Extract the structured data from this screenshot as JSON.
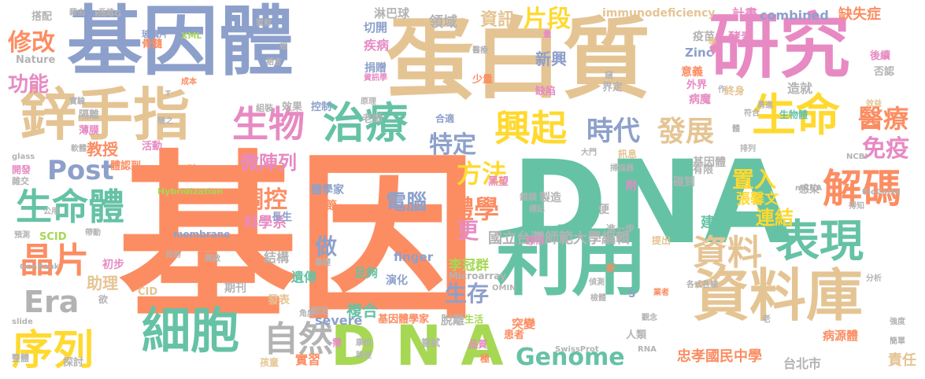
{
  "words": [
    {
      "text": "基因",
      "color": "#fc8d62",
      "weight": 1.0
    },
    {
      "text": "DNA",
      "color": "#66c2a5",
      "weight": 0.72
    },
    {
      "text": "蛋白質",
      "color": "#e5c494",
      "weight": 0.6
    },
    {
      "text": "基因體",
      "color": "#8da0cb",
      "weight": 0.58
    },
    {
      "text": "研究",
      "color": "#e78ac3",
      "weight": 0.52
    },
    {
      "text": "利用",
      "color": "#66c2a5",
      "weight": 0.46
    },
    {
      "text": "資料庫",
      "color": "#e5c494",
      "weight": 0.4
    },
    {
      "text": "鋅手指",
      "color": "#e5c494",
      "weight": 0.36
    },
    {
      "text": "D N A",
      "color": "#a6d854",
      "weight": 0.3
    },
    {
      "text": "生命",
      "color": "#ffd92f",
      "weight": 0.3
    },
    {
      "text": "治療",
      "color": "#66c2a5",
      "weight": 0.28
    },
    {
      "text": "細胞",
      "color": "#66c2a5",
      "weight": 0.28
    },
    {
      "text": "表現",
      "color": "#66c2a5",
      "weight": 0.28
    },
    {
      "text": "序列",
      "color": "#ffd92f",
      "weight": 0.26
    },
    {
      "text": "解碼",
      "color": "#fc8d62",
      "weight": 0.24
    },
    {
      "text": "生命體",
      "color": "#66c2a5",
      "weight": 0.24
    },
    {
      "text": "資料",
      "color": "#e5c494",
      "weight": 0.24
    },
    {
      "text": "興起",
      "color": "#ffd92f",
      "weight": 0.22
    },
    {
      "text": "生物",
      "color": "#e78ac3",
      "weight": 0.22
    },
    {
      "text": "Genome",
      "color": "#66c2a5",
      "weight": 0.2
    },
    {
      "text": "晶片",
      "color": "#fc8d62",
      "weight": 0.2
    },
    {
      "text": "自然",
      "color": "#b3b3b3",
      "weight": 0.2
    },
    {
      "text": "時代",
      "color": "#8da0cb",
      "weight": 0.18
    },
    {
      "text": "發展",
      "color": "#e5c494",
      "weight": 0.18
    },
    {
      "text": "醫療",
      "color": "#fc8d62",
      "weight": 0.16
    },
    {
      "text": "免疫",
      "color": "#e78ac3",
      "weight": 0.16
    },
    {
      "text": "Post",
      "color": "#8da0cb",
      "weight": 0.16
    },
    {
      "text": "Era",
      "color": "#b3b3b3",
      "weight": 0.16
    },
    {
      "text": "體學",
      "color": "#fc8d62",
      "weight": 0.15
    },
    {
      "text": "方法",
      "color": "#ffd92f",
      "weight": 0.15
    },
    {
      "text": "調控",
      "color": "#fc8d62",
      "weight": 0.14
    },
    {
      "text": "特定",
      "color": "#8da0cb",
      "weight": 0.14
    },
    {
      "text": "片段",
      "color": "#ffd92f",
      "weight": 0.14
    },
    {
      "text": "修改",
      "color": "#fc8d62",
      "weight": 0.13
    },
    {
      "text": "生存",
      "color": "#8da0cb",
      "weight": 0.13
    },
    {
      "text": "電腦",
      "color": "#8da0cb",
      "weight": 0.13
    },
    {
      "text": "置入",
      "color": "#ffd92f",
      "weight": 0.12
    },
    {
      "text": "微陣列",
      "color": "#e78ac3",
      "weight": 0.12
    },
    {
      "text": "功能",
      "color": "#e78ac3",
      "weight": 0.12
    },
    {
      "text": "做",
      "color": "#8da0cb",
      "weight": 0.12
    },
    {
      "text": "更",
      "color": "#e78ac3",
      "weight": 0.12
    },
    {
      "text": "連結",
      "color": "#ffd92f",
      "weight": 0.11
    },
    {
      "text": "資訊",
      "color": "#e5c494",
      "weight": 0.1
    },
    {
      "text": "科學系",
      "color": "#e78ac3",
      "weight": 0.1
    },
    {
      "text": "教授",
      "color": "#fc8d62",
      "weight": 0.1
    },
    {
      "text": "助理",
      "color": "#e5c494",
      "weight": 0.1
    },
    {
      "text": "張馨文",
      "color": "#ffd92f",
      "weight": 0.1
    },
    {
      "text": "建立",
      "color": "#66c2a5",
      "weight": 0.1
    },
    {
      "text": "新興",
      "color": "#8da0cb",
      "weight": 0.1
    },
    {
      "text": "複合",
      "color": "#66c2a5",
      "weight": 0.1
    },
    {
      "text": "國立台灣師範大學編輯",
      "color": "#b3b3b3",
      "weight": 0.09
    },
    {
      "text": "李冠群",
      "color": "#a6d854",
      "weight": 0.09
    },
    {
      "text": "忠孝國民中學",
      "color": "#fc8d62",
      "weight": 0.09
    },
    {
      "text": "台北市",
      "color": "#b3b3b3",
      "weight": 0.09
    },
    {
      "text": "combined",
      "color": "#8da0cb",
      "weight": 0.09
    },
    {
      "text": "severe",
      "color": "#8da0cb",
      "weight": 0.09
    },
    {
      "text": "缺失症",
      "color": "#fc8d62",
      "weight": 0.09
    },
    {
      "text": "領域",
      "color": "#b3b3b3",
      "weight": 0.09
    },
    {
      "text": "實習",
      "color": "#fc8d62",
      "weight": 0.09
    },
    {
      "text": "責任",
      "color": "#e5c494",
      "weight": 0.09
    },
    {
      "text": "遺傳",
      "color": "#66c2a5",
      "weight": 0.08
    },
    {
      "text": "結構",
      "color": "#b3b3b3",
      "weight": 0.08
    },
    {
      "text": "造就",
      "color": "#b3b3b3",
      "weight": 0.08
    },
    {
      "text": "疾病",
      "color": "#e78ac3",
      "weight": 0.08
    },
    {
      "text": "切開",
      "color": "#8da0cb",
      "weight": 0.08
    },
    {
      "text": "淋巴球",
      "color": "#b3b3b3",
      "weight": 0.08
    },
    {
      "text": "immunodeficiency",
      "color": "#e5c494",
      "weight": 0.07
    },
    {
      "text": "計畫",
      "color": "#e78ac3",
      "weight": 0.08
    },
    {
      "text": "finger",
      "color": "#8da0cb",
      "weight": 0.08
    },
    {
      "text": "Zinc",
      "color": "#8da0cb",
      "weight": 0.07
    },
    {
      "text": "病源體",
      "color": "#fc8d62",
      "weight": 0.07
    },
    {
      "text": "基因體學家",
      "color": "#fc8d62",
      "weight": 0.07
    },
    {
      "text": "體學家",
      "color": "#8da0cb",
      "weight": 0.07
    },
    {
      "text": "基因體",
      "color": "#b3b3b3",
      "weight": 0.06
    },
    {
      "text": "突變",
      "color": "#fc8d62",
      "weight": 0.07
    },
    {
      "text": "脫離",
      "color": "#b3b3b3",
      "weight": 0.07
    },
    {
      "text": "期刊",
      "color": "#b3b3b3",
      "weight": 0.07
    },
    {
      "text": "發表",
      "color": "#e5c494",
      "weight": 0.07
    },
    {
      "text": "初步",
      "color": "#e78ac3",
      "weight": 0.07
    },
    {
      "text": "足夠",
      "color": "#66c2a5",
      "weight": 0.07
    },
    {
      "text": "演化",
      "color": "#8da0cb",
      "weight": 0.06
    },
    {
      "text": "調節",
      "color": "#fc8d62",
      "weight": 0.06
    },
    {
      "text": "製造",
      "color": "#b3b3b3",
      "weight": 0.06
    },
    {
      "text": "碰到",
      "color": "#b3b3b3",
      "weight": 0.06
    },
    {
      "text": "感染",
      "color": "#b3b3b3",
      "weight": 0.06
    },
    {
      "text": "有限",
      "color": "#b3b3b3",
      "weight": 0.06
    },
    {
      "text": "病魔",
      "color": "#e78ac3",
      "weight": 0.06
    },
    {
      "text": "終身",
      "color": "#e5c494",
      "weight": 0.06
    },
    {
      "text": "意義",
      "color": "#fc8d62",
      "weight": 0.06
    },
    {
      "text": "外界",
      "color": "#e78ac3",
      "weight": 0.06
    },
    {
      "text": "疫苗",
      "color": "#b3b3b3",
      "weight": 0.06
    },
    {
      "text": "酵素",
      "color": "#e78ac3",
      "weight": 0.06
    },
    {
      "text": "後續",
      "color": "#e78ac3",
      "weight": 0.05
    },
    {
      "text": "否認",
      "color": "#b3b3b3",
      "weight": 0.05
    },
    {
      "text": "生物體",
      "color": "#66c2a5",
      "weight": 0.05
    },
    {
      "text": "缺陷",
      "color": "#e78ac3",
      "weight": 0.05
    },
    {
      "text": "界定",
      "color": "#b3b3b3",
      "weight": 0.05
    },
    {
      "text": "捐贈",
      "color": "#8da0cb",
      "weight": 0.05
    },
    {
      "text": "老師",
      "color": "#b3b3b3",
      "weight": 0.05
    },
    {
      "text": "少量",
      "color": "#fc8d62",
      "weight": 0.05
    },
    {
      "text": "搭配",
      "color": "#b3b3b3",
      "weight": 0.05
    },
    {
      "text": "骨髓",
      "color": "#fc8d62",
      "weight": 0.05
    },
    {
      "text": "隔離",
      "color": "#b3b3b3",
      "weight": 0.05
    },
    {
      "text": "薄膜",
      "color": "#e78ac3",
      "weight": 0.05
    },
    {
      "text": "活動",
      "color": "#e78ac3",
      "weight": 0.05
    },
    {
      "text": "正確",
      "color": "#fc8d62",
      "weight": 0.05
    },
    {
      "text": "體認到",
      "color": "#fc8d62",
      "weight": 0.05
    },
    {
      "text": "開發",
      "color": "#e78ac3",
      "weight": 0.05
    },
    {
      "text": "雜交",
      "color": "#b3b3b3",
      "weight": 0.04
    },
    {
      "text": "SCID",
      "color": "#a6d854",
      "weight": 0.05
    },
    {
      "text": "CID",
      "color": "#e5c494",
      "weight": 0.05
    },
    {
      "text": "Nature",
      "color": "#b3b3b3",
      "weight": 0.05
    },
    {
      "text": "KEGG",
      "color": "#b3b3b3",
      "weight": 0.04
    },
    {
      "text": "長生",
      "color": "#8da0cb",
      "weight": 0.05
    },
    {
      "text": "控制",
      "color": "#8da0cb",
      "weight": 0.05
    },
    {
      "text": "效果",
      "color": "#b3b3b3",
      "weight": 0.05
    },
    {
      "text": "組裝",
      "color": "#b3b3b3",
      "weight": 0.04
    },
    {
      "text": "合適",
      "color": "#8da0cb",
      "weight": 0.05
    },
    {
      "text": "黑望",
      "color": "#e78ac3",
      "weight": 0.05
    },
    {
      "text": "錯誤",
      "color": "#b3b3b3",
      "weight": 0.04
    },
    {
      "text": "附",
      "color": "#e78ac3",
      "weight": 0.05
    },
    {
      "text": "便",
      "color": "#b3b3b3",
      "weight": 0.05
    },
    {
      "text": "訊息",
      "color": "#e5c494",
      "weight": 0.04
    },
    {
      "text": "進一步",
      "color": "#b3b3b3",
      "weight": 0.04
    },
    {
      "text": "提出",
      "color": "#e5c494",
      "weight": 0.04
    },
    {
      "text": "想法",
      "color": "#e78ac3",
      "weight": 0.04
    },
    {
      "text": "患者",
      "color": "#fc8d62",
      "weight": 0.05
    },
    {
      "text": "人類",
      "color": "#b3b3b3",
      "weight": 0.05
    },
    {
      "text": "嘗試",
      "color": "#b3b3b3",
      "weight": 0.04
    },
    {
      "text": "品質",
      "color": "#e78ac3",
      "weight": 0.04
    },
    {
      "text": "生活",
      "color": "#a6d854",
      "weight": 0.04
    },
    {
      "text": "孩童",
      "color": "#e5c494",
      "weight": 0.04
    },
    {
      "text": "固定",
      "color": "#b3b3b3",
      "weight": 0.04
    },
    {
      "text": "探討",
      "color": "#b3b3b3",
      "weight": 0.04
    },
    {
      "text": "整體",
      "color": "#b3b3b3",
      "weight": 0.04
    },
    {
      "text": "Microarray",
      "color": "#b3b3b3",
      "weight": 0.04
    },
    {
      "text": "membrane",
      "color": "#8da0cb",
      "weight": 0.04
    },
    {
      "text": "Hybridization",
      "color": "#a6d854",
      "weight": 0.04
    },
    {
      "text": "GenBank",
      "color": "#b3b3b3",
      "weight": 0.03
    },
    {
      "text": "SwissProt",
      "color": "#b3b3b3",
      "weight": 0.03
    },
    {
      "text": "BioCarta",
      "color": "#b3b3b3",
      "weight": 0.03
    },
    {
      "text": "NCBI",
      "color": "#b3b3b3",
      "weight": 0.03
    },
    {
      "text": "mRNA",
      "color": "#b3b3b3",
      "weight": 0.03
    },
    {
      "text": "RNA",
      "color": "#b3b3b3",
      "weight": 0.03
    },
    {
      "text": "OMIN",
      "color": "#b3b3b3",
      "weight": 0.03
    },
    {
      "text": "XML",
      "color": "#a6d854",
      "weight": 0.03
    },
    {
      "text": "slide",
      "color": "#b3b3b3",
      "weight": 0.03
    },
    {
      "text": "glass",
      "color": "#b3b3b3",
      "weight": 0.03
    },
    {
      "text": "S",
      "color": "#8da0cb",
      "weight": 0.04
    },
    {
      "text": "T",
      "color": "#b3b3b3",
      "weight": 0.03
    },
    {
      "text": "老",
      "color": "#b3b3b3",
      "weight": 0.03
    },
    {
      "text": "新",
      "color": "#fc8d62",
      "weight": 0.03
    },
    {
      "text": "欲",
      "color": "#b3b3b3",
      "weight": 0.04
    },
    {
      "text": "需",
      "color": "#e78ac3",
      "weight": 0.04
    },
    {
      "text": "極",
      "color": "#fc8d62",
      "weight": 0.04
    },
    {
      "text": "簡單",
      "color": "#b3b3b3",
      "weight": 0.03
    },
    {
      "text": "強度",
      "color": "#b3b3b3",
      "weight": 0.03
    },
    {
      "text": "分析",
      "color": "#b3b3b3",
      "weight": 0.03
    },
    {
      "text": "業者",
      "color": "#fc8d62",
      "weight": 0.03
    },
    {
      "text": "各式各樣",
      "color": "#b3b3b3",
      "weight": 0.03
    },
    {
      "text": "觀念",
      "color": "#b3b3b3",
      "weight": 0.03
    },
    {
      "text": "檢體",
      "color": "#b3b3b3",
      "weight": 0.03
    },
    {
      "text": "偵測",
      "color": "#b3b3b3",
      "weight": 0.03
    },
    {
      "text": "排列",
      "color": "#b3b3b3",
      "weight": 0.03
    },
    {
      "text": "得知",
      "color": "#b3b3b3",
      "weight": 0.03
    },
    {
      "text": "勇進",
      "color": "#b3b3b3",
      "weight": 0.03
    },
    {
      "text": "效益",
      "color": "#e5c494",
      "weight": 0.03
    },
    {
      "text": "標記",
      "color": "#b3b3b3",
      "weight": 0.03
    },
    {
      "text": "掃描器",
      "color": "#b3b3b3",
      "weight": 0.03
    },
    {
      "text": "大門",
      "color": "#b3b3b3",
      "weight": 0.03
    },
    {
      "text": "原理",
      "color": "#b3b3b3",
      "weight": 0.03
    },
    {
      "text": "資訊學",
      "color": "#e78ac3",
      "weight": 0.03
    },
    {
      "text": "醫療",
      "color": "#b3b3b3",
      "weight": 0.03
    },
    {
      "text": "窺",
      "color": "#b3b3b3",
      "weight": 0.03
    },
    {
      "text": "量",
      "color": "#e78ac3",
      "weight": 0.03
    },
    {
      "text": "作",
      "color": "#b3b3b3",
      "weight": 0.03
    },
    {
      "text": "學",
      "color": "#e5c494",
      "weight": 0.03
    },
    {
      "text": "相",
      "color": "#b3b3b3",
      "weight": 0.03
    },
    {
      "text": "語言",
      "color": "#b3b3b3",
      "weight": 0.03
    },
    {
      "text": "成本",
      "color": "#fc8d62",
      "weight": 0.03
    },
    {
      "text": "實驗",
      "color": "#b3b3b3",
      "weight": 0.03
    },
    {
      "text": "隨之",
      "color": "#b3b3b3",
      "weight": 0.03
    },
    {
      "text": "軟體",
      "color": "#b3b3b3",
      "weight": 0.03
    },
    {
      "text": "公用",
      "color": "#b3b3b3",
      "weight": 0.03
    },
    {
      "text": "預測",
      "color": "#b3b3b3",
      "weight": 0.03
    },
    {
      "text": "帶動",
      "color": "#b3b3b3",
      "weight": 0.03
    },
    {
      "text": "目的",
      "color": "#b3b3b3",
      "weight": 0.03
    },
    {
      "text": "開啟",
      "color": "#b3b3b3",
      "weight": 0.03
    },
    {
      "text": "基礎",
      "color": "#b3b3b3",
      "weight": 0.03
    },
    {
      "text": "角度",
      "color": "#b3b3b3",
      "weight": 0.03
    },
    {
      "text": "康柏",
      "color": "#b3b3b3",
      "weight": 0.03
    },
    {
      "text": "路徑",
      "color": "#b3b3b3",
      "weight": 0.03
    },
    {
      "text": "昇陽",
      "color": "#fc8d62",
      "weight": 0.03
    },
    {
      "text": "雷射",
      "color": "#b3b3b3",
      "weight": 0.03
    },
    {
      "text": "玻璃片",
      "color": "#8da0cb",
      "weight": 0.03
    },
    {
      "text": "藉由",
      "color": "#b3b3b3",
      "weight": 0.03
    },
    {
      "text": "系統",
      "color": "#b3b3b3",
      "weight": 0.03
    },
    {
      "text": "體",
      "color": "#b3b3b3",
      "weight": 0.03
    },
    {
      "text": "符合",
      "color": "#b3b3b3",
      "weight": 0.03
    }
  ]
}
